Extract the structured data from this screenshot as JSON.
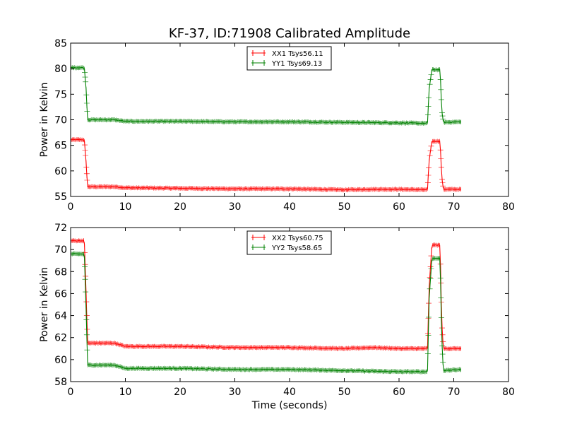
{
  "figure": {
    "title": "KF-37, ID:71908 Calibrated Amplitude",
    "xlabel": "Time (seconds)"
  },
  "chart_data": [
    {
      "type": "line",
      "title": "KF-37, ID:71908 Calibrated Amplitude",
      "xlabel": "",
      "ylabel": "Power in Kelvin",
      "xlim": [
        0,
        80
      ],
      "ylim": [
        55,
        85
      ],
      "xticks": [
        "0",
        "10",
        "20",
        "30",
        "40",
        "50",
        "60",
        "70",
        "80"
      ],
      "yticks": [
        "55",
        "60",
        "65",
        "70",
        "75",
        "80",
        "85"
      ],
      "grid": false,
      "legend_position": "top-center",
      "series": [
        {
          "name": "XX1 Tsys56.11",
          "color": "#ff0000",
          "points": [
            [
              0,
              66.1
            ],
            [
              2.5,
              66.1
            ],
            [
              2.8,
              62.0
            ],
            [
              3.1,
              56.9
            ],
            [
              8,
              56.9
            ],
            [
              10,
              56.7
            ],
            [
              20,
              56.6
            ],
            [
              30,
              56.5
            ],
            [
              40,
              56.5
            ],
            [
              50,
              56.3
            ],
            [
              55,
              56.4
            ],
            [
              60,
              56.4
            ],
            [
              65.2,
              56.3
            ],
            [
              65.5,
              62.0
            ],
            [
              66.0,
              65.8
            ],
            [
              67.5,
              65.8
            ],
            [
              67.8,
              59.0
            ],
            [
              68.1,
              56.4
            ],
            [
              71.3,
              56.4
            ]
          ]
        },
        {
          "name": "YY1 Tsys69.13",
          "color": "#008000",
          "points": [
            [
              0,
              80.2
            ],
            [
              2.5,
              80.2
            ],
            [
              2.8,
              76.5
            ],
            [
              3.1,
              70.0
            ],
            [
              8,
              70.0
            ],
            [
              10,
              69.7
            ],
            [
              20,
              69.7
            ],
            [
              30,
              69.6
            ],
            [
              40,
              69.6
            ],
            [
              50,
              69.5
            ],
            [
              60,
              69.4
            ],
            [
              65.2,
              69.3
            ],
            [
              65.5,
              76.0
            ],
            [
              66.0,
              79.8
            ],
            [
              67.5,
              79.8
            ],
            [
              67.8,
              72.0
            ],
            [
              68.1,
              69.5
            ],
            [
              71.3,
              69.6
            ]
          ]
        }
      ]
    },
    {
      "type": "line",
      "title": "",
      "xlabel": "Time (seconds)",
      "ylabel": "Power in Kelvin",
      "xlim": [
        0,
        80
      ],
      "ylim": [
        58,
        72
      ],
      "xticks": [
        "0",
        "10",
        "20",
        "30",
        "40",
        "50",
        "60",
        "70",
        "80"
      ],
      "yticks": [
        "58",
        "60",
        "62",
        "64",
        "66",
        "68",
        "70",
        "72"
      ],
      "grid": false,
      "legend_position": "top-center",
      "series": [
        {
          "name": "XX2 Tsys60.75",
          "color": "#ff0000",
          "points": [
            [
              0,
              70.8
            ],
            [
              2.5,
              70.8
            ],
            [
              2.8,
              66.5
            ],
            [
              3.1,
              61.5
            ],
            [
              8,
              61.5
            ],
            [
              10,
              61.2
            ],
            [
              20,
              61.2
            ],
            [
              30,
              61.1
            ],
            [
              40,
              61.1
            ],
            [
              50,
              61.0
            ],
            [
              55,
              61.1
            ],
            [
              60,
              61.0
            ],
            [
              65.2,
              61.0
            ],
            [
              65.5,
              66.5
            ],
            [
              66.0,
              70.4
            ],
            [
              67.5,
              70.4
            ],
            [
              67.8,
              63.5
            ],
            [
              68.1,
              61.0
            ],
            [
              71.3,
              61.0
            ]
          ]
        },
        {
          "name": "YY2 Tsys58.65",
          "color": "#008000",
          "points": [
            [
              0,
              69.6
            ],
            [
              2.5,
              69.6
            ],
            [
              2.8,
              65.0
            ],
            [
              3.1,
              59.5
            ],
            [
              8,
              59.5
            ],
            [
              10,
              59.2
            ],
            [
              20,
              59.2
            ],
            [
              30,
              59.1
            ],
            [
              40,
              59.1
            ],
            [
              50,
              59.0
            ],
            [
              60,
              58.9
            ],
            [
              65.2,
              58.9
            ],
            [
              65.5,
              65.5
            ],
            [
              66.0,
              69.2
            ],
            [
              67.5,
              69.2
            ],
            [
              67.8,
              62.0
            ],
            [
              68.1,
              59.0
            ],
            [
              71.3,
              59.1
            ]
          ]
        }
      ]
    }
  ]
}
